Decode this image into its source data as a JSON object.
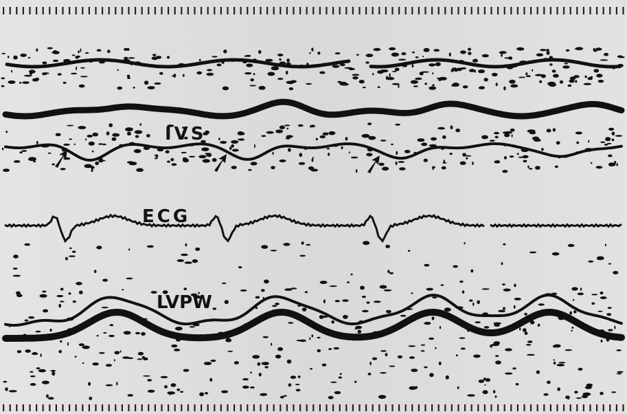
{
  "labels": {
    "ivs": "IVS",
    "ecg": "ECG",
    "lvpw": "LVPW"
  }
}
